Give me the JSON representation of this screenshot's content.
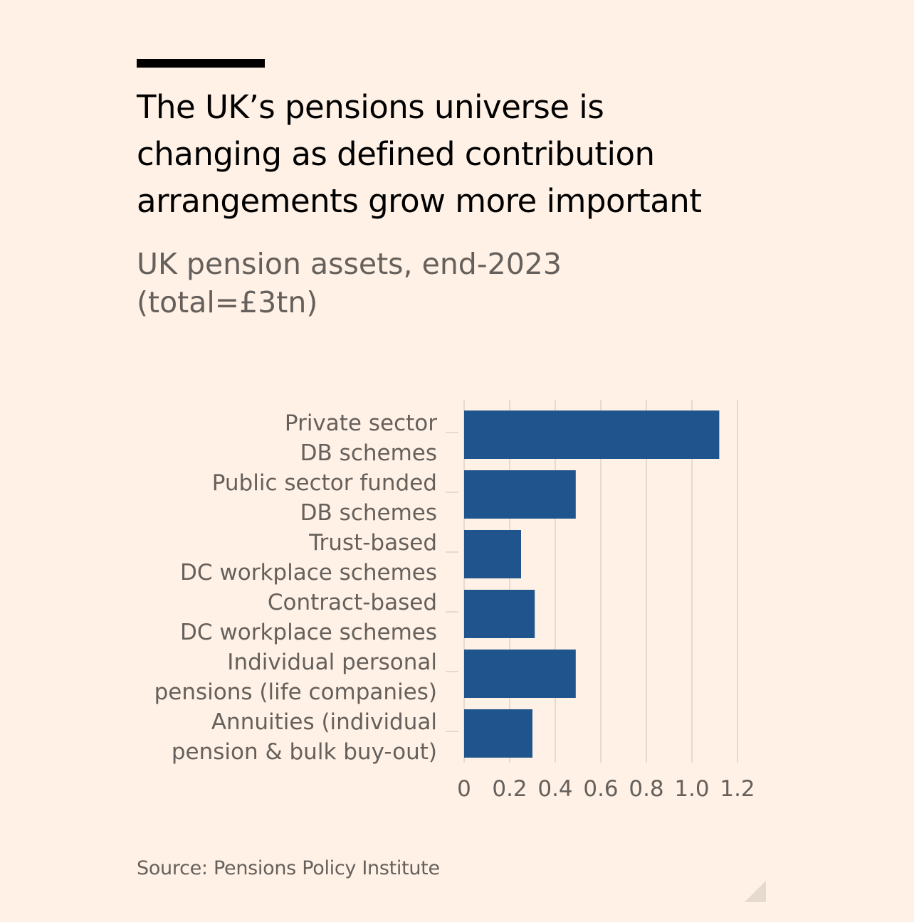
{
  "chart_data": {
    "type": "bar",
    "orientation": "horizontal",
    "title": "The UK’s pensions universe is changing as defined contribution arrangements grow more important",
    "title_lines": [
      "The UK’s pensions universe is",
      "changing as defined contribution",
      "arrangements grow more important"
    ],
    "subtitle_lines": [
      "UK pension assets, end-2023",
      "(total=£3tn)"
    ],
    "categories": [
      [
        "Private sector",
        "DB schemes"
      ],
      [
        "Public sector funded",
        "DB schemes"
      ],
      [
        "Trust-based",
        "DC workplace schemes"
      ],
      [
        "Contract-based",
        "DC workplace schemes"
      ],
      [
        "Individual personal",
        "pensions (life companies)"
      ],
      [
        "Annuities (individual",
        "pension & bulk buy-out)"
      ]
    ],
    "values": [
      1.12,
      0.49,
      0.25,
      0.31,
      0.49,
      0.3
    ],
    "xlim": [
      0,
      1.2
    ],
    "xticks": [
      0,
      0.2,
      0.4,
      0.6,
      0.8,
      1.0,
      1.2
    ],
    "xtick_labels": [
      "0",
      "0.2",
      "0.4",
      "0.6",
      "0.8",
      "1.0",
      "1.2"
    ],
    "xlabel": "",
    "ylabel": "",
    "grid": "vertical",
    "legend": "none",
    "bar_color": "#1f558c",
    "grid_color": "#e6d9ce",
    "source": "Source: Pensions Policy Institute"
  }
}
